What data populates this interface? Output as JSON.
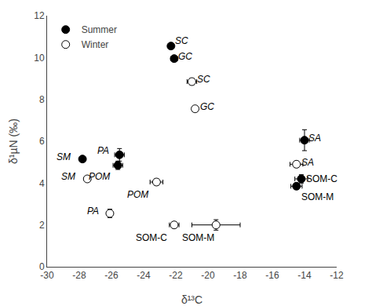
{
  "chart_data": {
    "type": "scatter",
    "xlabel": "δ¹³C",
    "ylabel": "δ¹µN (‰)",
    "xlim": [
      -30,
      -12
    ],
    "ylim": [
      0,
      12
    ],
    "xticks": [
      -30,
      -28,
      -26,
      -24,
      -22,
      -20,
      -18,
      -16,
      -14,
      -12
    ],
    "yticks": [
      0,
      2,
      4,
      6,
      8,
      10,
      12
    ],
    "grid": false,
    "legend": "upper left",
    "marker": "circle",
    "series": [
      {
        "name": "Summer",
        "color": "black",
        "x": [
          -22.3,
          -22.1,
          -27.8,
          -25.5,
          -25.6,
          -14.0,
          -14.2,
          -14.5
        ],
        "values": [
          10.55,
          9.95,
          5.15,
          5.35,
          4.85,
          6.05,
          4.2,
          3.85
        ],
        "xerr": [
          0.0,
          0.2,
          0.0,
          0.3,
          0.3,
          0.3,
          0.4,
          0.35
        ],
        "yerr": [
          0.0,
          0.1,
          0.0,
          0.3,
          0.2,
          0.5,
          0.2,
          0.15
        ]
      },
      {
        "name": "Winter",
        "color": "white",
        "x": [
          -21.0,
          -20.8,
          -27.5,
          -23.2,
          -26.1,
          -22.1,
          -19.5,
          -14.5
        ],
        "values": [
          8.85,
          7.55,
          4.2,
          4.05,
          2.55,
          2.0,
          2.0,
          4.9
        ],
        "xerr": [
          0.3,
          0.0,
          0.0,
          0.4,
          0.0,
          0.3,
          1.5,
          0.4
        ],
        "yerr": [
          0.15,
          0.0,
          0.0,
          0.15,
          0.2,
          0.15,
          0.25,
          0.15
        ]
      }
    ],
    "annotations": [
      {
        "text": "SC",
        "x": -22.15,
        "y": 10.8
      },
      {
        "text": "GC",
        "x": -21.95,
        "y": 10.05
      },
      {
        "text": "SC",
        "x": -20.8,
        "y": 8.95
      },
      {
        "text": "GC",
        "x": -20.6,
        "y": 7.65
      },
      {
        "text": "SM",
        "x": -29.5,
        "y": 5.25
      },
      {
        "text": "PA",
        "x": -27.0,
        "y": 5.55
      },
      {
        "text": "POM",
        "x": -27.5,
        "y": 4.3
      },
      {
        "text": "SM",
        "x": -29.2,
        "y": 4.3
      },
      {
        "text": "POM",
        "x": -25.1,
        "y": 3.45
      },
      {
        "text": "PA",
        "x": -27.6,
        "y": 2.65
      },
      {
        "text": "SOM-C",
        "x": -24.6,
        "y": 1.4
      },
      {
        "text": "SOM-M",
        "x": -21.7,
        "y": 1.4
      },
      {
        "text": "SA",
        "x": -13.85,
        "y": 6.15
      },
      {
        "text": "SA",
        "x": -14.3,
        "y": 5.0
      },
      {
        "text": "SOM-C",
        "x": -14.0,
        "y": 4.2
      },
      {
        "text": "SOM-M",
        "x": -14.3,
        "y": 3.35
      }
    ]
  }
}
